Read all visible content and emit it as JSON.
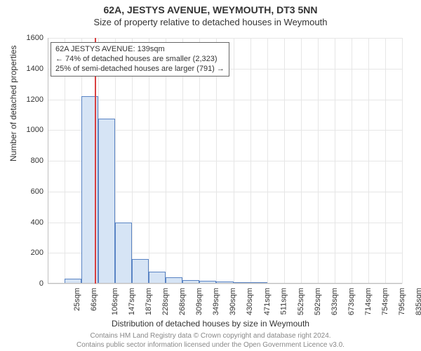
{
  "header": {
    "title": "62A, JESTYS AVENUE, WEYMOUTH, DT3 5NN",
    "subtitle": "Size of property relative to detached houses in Weymouth"
  },
  "chart": {
    "type": "histogram",
    "ylabel": "Number of detached properties",
    "xlabel": "Distribution of detached houses by size in Weymouth",
    "ylim": [
      0,
      1600
    ],
    "ytick_step": 200,
    "background_color": "#ffffff",
    "grid_color": "#e6e6e6",
    "axis_color": "#bfbfbf",
    "label_fontsize": 12,
    "tick_fontsize": 11,
    "bar_fill": "#d6e4f5",
    "bar_stroke": "#5a84c4",
    "bar_width_ratio": 1.0,
    "categories": [
      "25sqm",
      "66sqm",
      "106sqm",
      "147sqm",
      "187sqm",
      "228sqm",
      "268sqm",
      "309sqm",
      "349sqm",
      "390sqm",
      "430sqm",
      "471sqm",
      "511sqm",
      "552sqm",
      "592sqm",
      "633sqm",
      "673sqm",
      "714sqm",
      "754sqm",
      "795sqm",
      "835sqm"
    ],
    "values": [
      0,
      30,
      1220,
      1075,
      400,
      160,
      80,
      40,
      25,
      20,
      15,
      10,
      10,
      0,
      0,
      0,
      0,
      0,
      0,
      0,
      0
    ],
    "reference": {
      "value_sqm": 139,
      "line_color": "#d94040",
      "line_width": 1.5,
      "annotation": {
        "line1": "62A JESTYS AVENUE: 139sqm",
        "line2": "← 74% of detached houses are smaller (2,323)",
        "line3": "25% of semi-detached houses are larger (791) →",
        "border_color": "#666666",
        "background": "#ffffff",
        "fontsize": 11
      }
    }
  },
  "footer": {
    "line1": "Contains HM Land Registry data © Crown copyright and database right 2024.",
    "line2": "Contains public sector information licensed under the Open Government Licence v3.0."
  }
}
